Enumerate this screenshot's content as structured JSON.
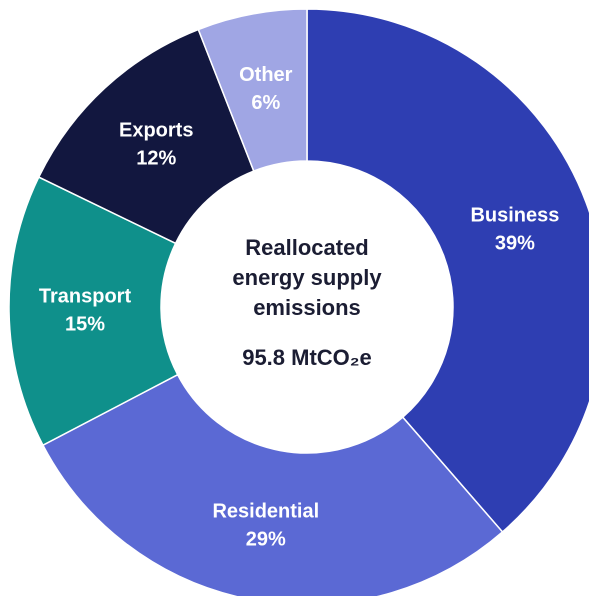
{
  "chart_data": {
    "type": "donut",
    "categories": [
      "Business",
      "Residential",
      "Transport",
      "Exports",
      "Other"
    ],
    "values": [
      39,
      29,
      15,
      12,
      6
    ],
    "value_labels": [
      "39%",
      "29%",
      "15%",
      "12%",
      "6%"
    ],
    "colors": [
      "#2e3eb2",
      "#5b69d4",
      "#0f908b",
      "#12173f",
      "#a0a6e4"
    ],
    "center_lines": [
      "Reallocated",
      "energy supply",
      "emissions"
    ],
    "total_label": "95.8 MtCO₂e"
  }
}
